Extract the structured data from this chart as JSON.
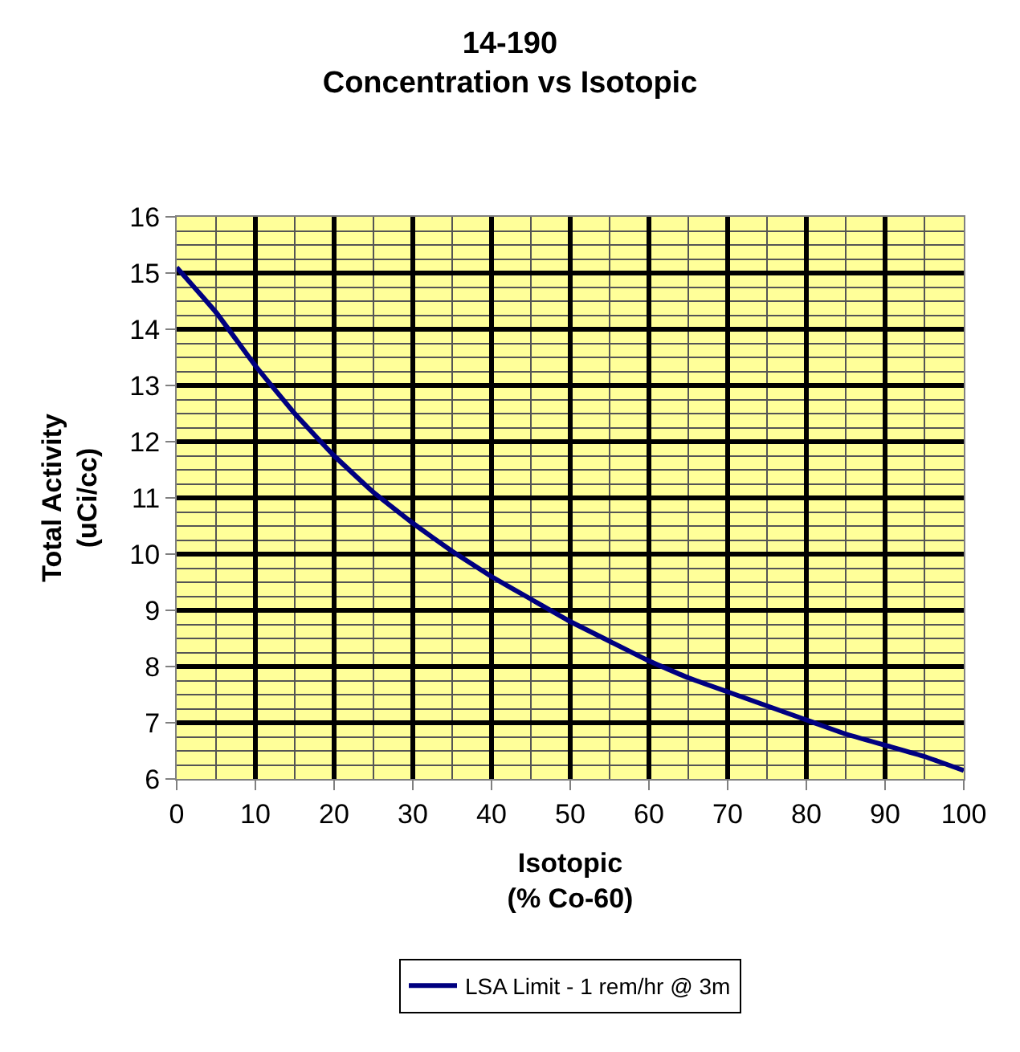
{
  "chart_data": {
    "type": "line",
    "title": "14-190\nConcentration vs Isotopic",
    "xlabel": "Isotopic\n(% Co-60)",
    "ylabel": "Total Activity\n(uCi/cc)",
    "x": [
      0,
      5,
      10,
      15,
      20,
      25,
      30,
      35,
      40,
      45,
      50,
      55,
      60,
      65,
      70,
      75,
      80,
      85,
      90,
      95,
      100
    ],
    "series": [
      {
        "name": "LSA Limit - 1 rem/hr @ 3m",
        "color": "#000080",
        "values": [
          15.1,
          14.3,
          13.35,
          12.5,
          11.75,
          11.1,
          10.55,
          10.05,
          9.6,
          9.2,
          8.8,
          8.45,
          8.1,
          7.8,
          7.55,
          7.3,
          7.05,
          6.8,
          6.6,
          6.4,
          6.15
        ]
      }
    ],
    "xlim": [
      0,
      100
    ],
    "xticks": [
      0,
      10,
      20,
      30,
      40,
      50,
      60,
      70,
      80,
      90,
      100
    ],
    "ylim": [
      6,
      16
    ],
    "yticks": [
      6,
      7,
      8,
      9,
      10,
      11,
      12,
      13,
      14,
      15,
      16
    ],
    "grid": true,
    "legend": "bottom",
    "marker": "none",
    "line_style": "solid"
  }
}
